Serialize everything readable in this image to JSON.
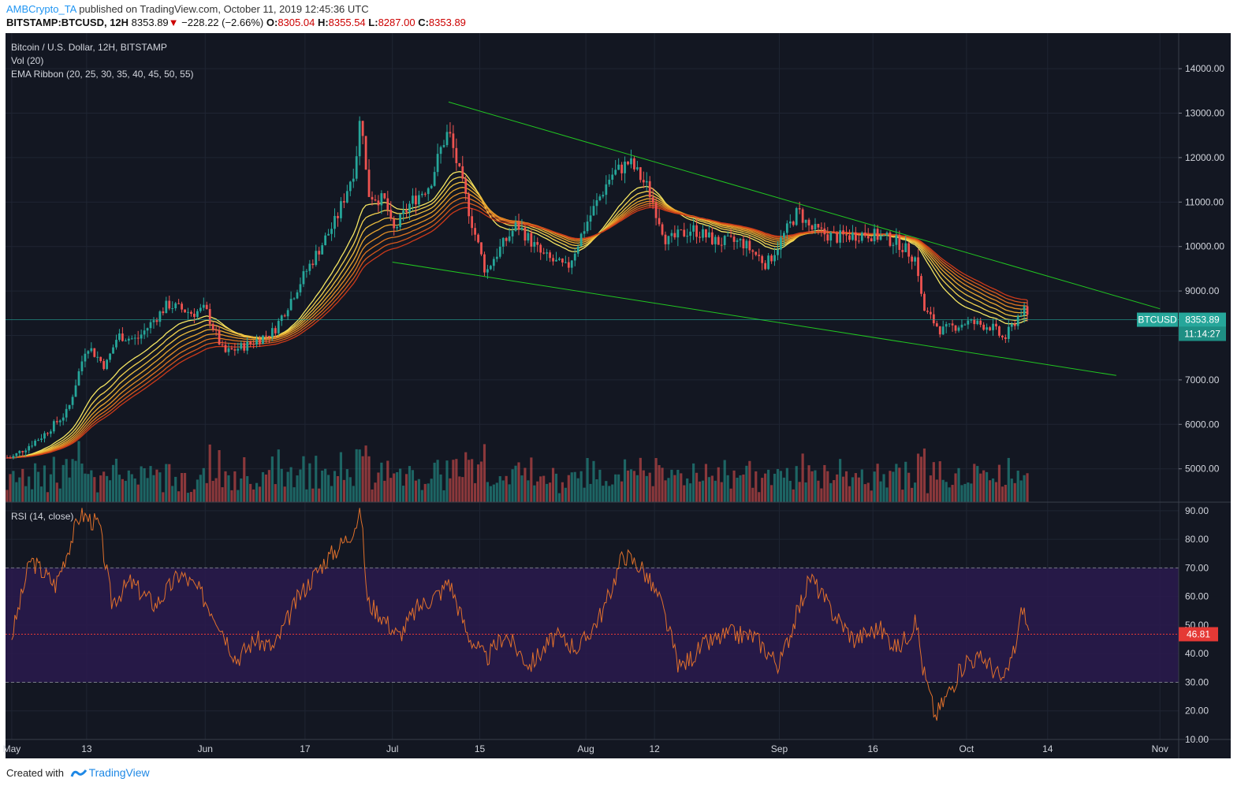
{
  "header": {
    "author": "AMBCrypto_TA",
    "published": "published on TradingView.com, October 11, 2019 12:45:36 UTC",
    "symbol": "BITSTAMP:BTCUSD, 12H",
    "last": "8353.89",
    "down_arrow": "▼",
    "change": "−228.22 (−2.66%)",
    "o_label": "O:",
    "o_val": "8305.04",
    "h_label": "H:",
    "h_val": "8355.54",
    "l_label": "L:",
    "l_val": "8287.00",
    "c_label": "C:",
    "c_val": "8353.89"
  },
  "footer": {
    "created_with": "Created with",
    "brand": "TradingView"
  },
  "colors": {
    "background": "#131722",
    "grid": "#1f2533",
    "up": "#26a69a",
    "down": "#ef5350",
    "trendline": "#21c521",
    "rsi_line": "#e0702b",
    "rsi_band": "#2a1a4d",
    "rsi_mid": "#e53935",
    "label_teal": "#26a69a"
  },
  "chart_data": [
    {
      "type": "candlestick",
      "title": "Bitcoin / U.S. Dollar, 12H, BITSTAMP",
      "indicators": [
        "Vol (20)",
        "EMA Ribbon (20, 25, 30, 35, 40, 45, 50, 55)"
      ],
      "y_ticks": [
        "14000.00",
        "13000.00",
        "12000.00",
        "11000.00",
        "10000.00",
        "9000.00",
        "8000.00",
        "7000.00",
        "6000.00",
        "5000.00"
      ],
      "ylim": [
        4250,
        14800
      ],
      "x_ticks": [
        "May",
        "13",
        "Jun",
        "17",
        "Jul",
        "15",
        "Aug",
        "12",
        "Sep",
        "16",
        "Oct",
        "14",
        "Nov"
      ],
      "x_tick_dates": [
        "2019-05-01",
        "2019-05-13",
        "2019-06-01",
        "2019-06-17",
        "2019-07-01",
        "2019-07-15",
        "2019-08-01",
        "2019-08-12",
        "2019-09-01",
        "2019-09-16",
        "2019-10-01",
        "2019-10-14",
        "2019-11-01"
      ],
      "price_series": {
        "name": "BTCUSD",
        "dates": [
          "2019-05-01",
          "2019-05-06",
          "2019-05-10",
          "2019-05-13",
          "2019-05-16",
          "2019-05-18",
          "2019-05-21",
          "2019-05-26",
          "2019-05-30",
          "2019-06-01",
          "2019-06-04",
          "2019-06-08",
          "2019-06-12",
          "2019-06-17",
          "2019-06-22",
          "2019-06-25",
          "2019-06-26",
          "2019-06-27",
          "2019-06-30",
          "2019-07-01",
          "2019-07-04",
          "2019-07-07",
          "2019-07-09",
          "2019-07-10",
          "2019-07-14",
          "2019-07-16",
          "2019-07-17",
          "2019-07-21",
          "2019-07-25",
          "2019-07-29",
          "2019-08-01",
          "2019-08-05",
          "2019-08-08",
          "2019-08-11",
          "2019-08-14",
          "2019-08-18",
          "2019-08-22",
          "2019-08-26",
          "2019-08-30",
          "2019-09-04",
          "2019-09-06",
          "2019-09-10",
          "2019-09-15",
          "2019-09-20",
          "2019-09-23",
          "2019-09-24",
          "2019-09-27",
          "2019-10-01",
          "2019-10-05",
          "2019-10-07",
          "2019-10-10",
          "2019-10-11"
        ],
        "close": [
          5250,
          5750,
          6300,
          7800,
          7300,
          8000,
          7900,
          8700,
          8500,
          8600,
          7600,
          7800,
          8100,
          9400,
          10600,
          11800,
          13100,
          11200,
          11000,
          10300,
          11000,
          11400,
          12300,
          12600,
          10400,
          9400,
          9700,
          10500,
          9800,
          9500,
          10500,
          11600,
          11900,
          11300,
          10100,
          10400,
          10100,
          10100,
          9600,
          10800,
          10400,
          10200,
          10300,
          10100,
          9700,
          8600,
          8100,
          8300,
          8200,
          7900,
          8600,
          8353.89
        ]
      },
      "volume_series": {
        "name": "Vol (20)",
        "note": "relative bars under price"
      },
      "ema_ribbon": {
        "name": "EMA Ribbon (20, 25, 30, 35, 40, 45, 50, 55)",
        "periods": [
          20,
          25,
          30,
          35,
          40,
          45,
          50,
          55
        ]
      },
      "trendlines": [
        {
          "from": [
            "2019-07-10",
            13250
          ],
          "to": [
            "2019-11-01",
            8600
          ]
        },
        {
          "from": [
            "2019-07-01",
            9650
          ],
          "to": [
            "2019-10-25",
            7100
          ]
        }
      ],
      "price_label": {
        "symbol": "BTCUSD",
        "value": "8353.89",
        "countdown": "11:14:27"
      }
    },
    {
      "type": "line",
      "title": "RSI (14, close)",
      "y_ticks": [
        "90.00",
        "80.00",
        "70.00",
        "60.00",
        "50.00",
        "40.00",
        "30.00",
        "20.00",
        "10.00"
      ],
      "ylim": [
        10,
        93
      ],
      "upper_band": 70,
      "lower_band": 30,
      "current_value": "46.81",
      "series": {
        "dates": [
          "2019-05-01",
          "2019-05-04",
          "2019-05-08",
          "2019-05-12",
          "2019-05-15",
          "2019-05-17",
          "2019-05-20",
          "2019-05-24",
          "2019-05-28",
          "2019-05-31",
          "2019-06-03",
          "2019-06-06",
          "2019-06-09",
          "2019-06-12",
          "2019-06-16",
          "2019-06-20",
          "2019-06-24",
          "2019-06-26",
          "2019-06-27",
          "2019-06-29",
          "2019-07-02",
          "2019-07-05",
          "2019-07-09",
          "2019-07-10",
          "2019-07-13",
          "2019-07-16",
          "2019-07-19",
          "2019-07-23",
          "2019-07-27",
          "2019-07-31",
          "2019-08-04",
          "2019-08-07",
          "2019-08-10",
          "2019-08-13",
          "2019-08-16",
          "2019-08-20",
          "2019-08-24",
          "2019-08-28",
          "2019-09-01",
          "2019-09-04",
          "2019-09-06",
          "2019-09-09",
          "2019-09-13",
          "2019-09-17",
          "2019-09-20",
          "2019-09-23",
          "2019-09-24",
          "2019-09-26",
          "2019-09-28",
          "2019-10-01",
          "2019-10-04",
          "2019-10-07",
          "2019-10-09",
          "2019-10-10",
          "2019-10-11"
        ],
        "values": [
          46,
          73,
          64,
          89,
          85,
          58,
          65,
          57,
          68,
          62,
          52,
          38,
          45,
          42,
          60,
          72,
          81,
          89,
          58,
          54,
          46,
          56,
          62,
          66,
          47,
          38,
          47,
          36,
          46,
          42,
          56,
          75,
          70,
          58,
          35,
          43,
          47,
          46,
          36,
          55,
          67,
          56,
          45,
          49,
          42,
          51,
          35,
          18,
          26,
          38,
          38,
          30,
          44,
          57,
          46.81
        ]
      }
    }
  ]
}
